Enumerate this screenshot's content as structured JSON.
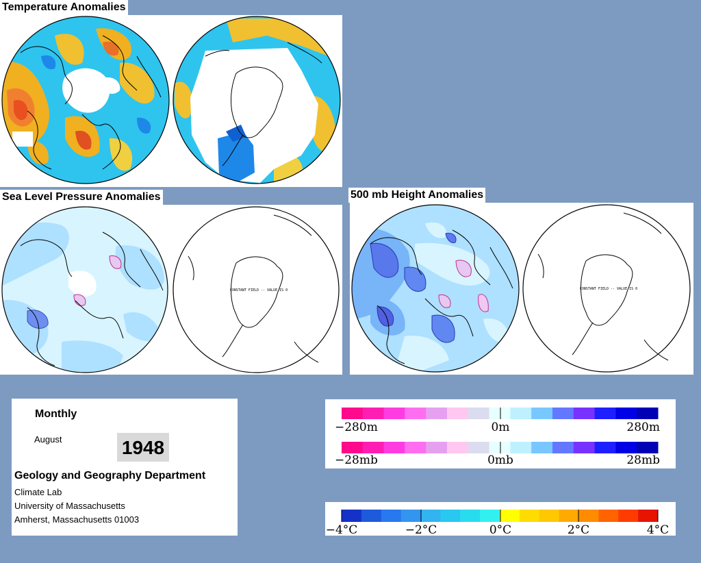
{
  "sections": {
    "temp_title": "Temperature Anomalies",
    "slp_title": "Sea Level Pressure Anomalies",
    "height_title": "500 mb Height Anomalies"
  },
  "panels": {
    "slp_south_note": "CONSTANT FIELD -- VALUE IS 0",
    "height_south_note": "CONSTANT FIELD -- VALUE IS 0"
  },
  "info": {
    "period": "Monthly",
    "month": "August",
    "year": "1948",
    "department": "Geology and Geography Department",
    "lab": "Climate Lab",
    "university": "University of Massachusetts",
    "address": "Amherst, Massachusetts 01003"
  },
  "legends": {
    "height": {
      "min": "−280m",
      "mid": "0m",
      "max": "280m",
      "colors": [
        "#ff0a8c",
        "#ff1eb4",
        "#ff3ce1",
        "#ff6ef0",
        "#e6a0f0",
        "#ffc8f0",
        "#dcdcf0",
        "#e6ffff",
        "#bff0ff",
        "#78c8ff",
        "#6478ff",
        "#7832ff",
        "#1e1eff",
        "#0000e6",
        "#0000b4"
      ]
    },
    "pressure": {
      "min": "−28mb",
      "mid": "0mb",
      "max": "28mb",
      "colors": [
        "#ff0a8c",
        "#ff1eb4",
        "#ff3ce1",
        "#ff6ef0",
        "#e6a0f0",
        "#ffc8f0",
        "#dcdcf0",
        "#e6ffff",
        "#bff0ff",
        "#78c8ff",
        "#6478ff",
        "#7832ff",
        "#1e1eff",
        "#0000e6",
        "#0000b4"
      ]
    },
    "temperature": {
      "labels": [
        "−4°C",
        "−2°C",
        "0°C",
        "2°C",
        "4°C"
      ],
      "colors": [
        "#1432c8",
        "#1e5adc",
        "#2878f0",
        "#3296f0",
        "#32b4f0",
        "#28c8f0",
        "#28dcf0",
        "#32f0f0",
        "#ffff00",
        "#ffdc00",
        "#ffc800",
        "#ffaa00",
        "#ff8c00",
        "#ff6400",
        "#ff3c00",
        "#e61400"
      ]
    }
  }
}
